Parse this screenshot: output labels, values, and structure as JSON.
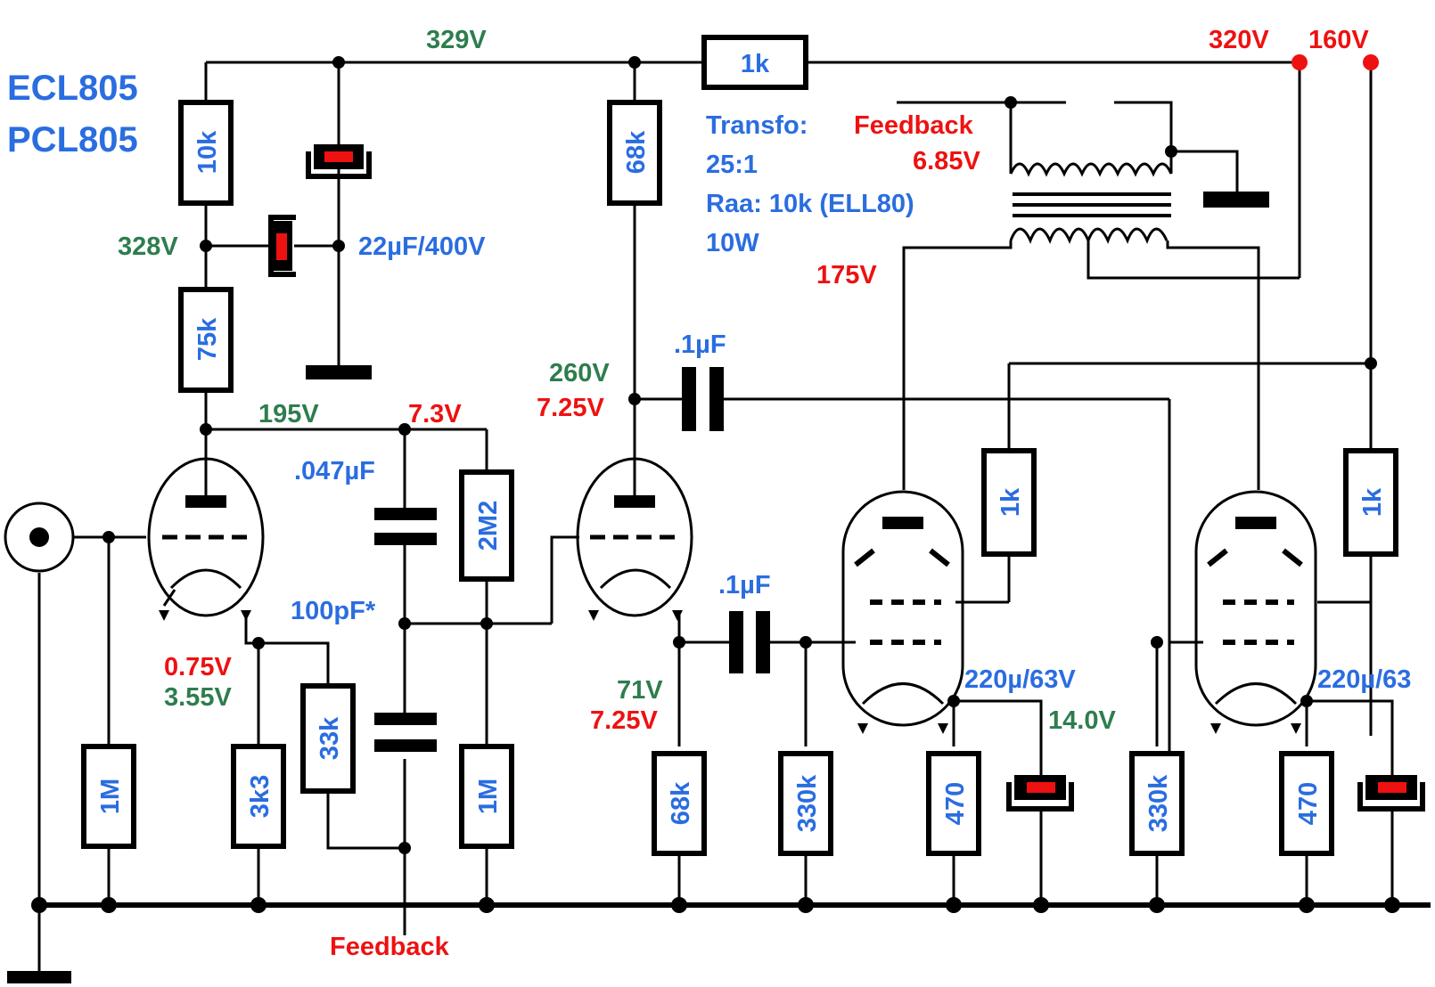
{
  "title_lines": [
    "ECL805",
    "PCL805"
  ],
  "colors": {
    "blue": "#2a6de0",
    "green": "#2e7d4e",
    "red": "#ee1111"
  },
  "voltages": {
    "v329": "329V",
    "v328": "328V",
    "v320": "320V",
    "v160": "160V",
    "v195": "195V",
    "v7_3": "7.3V",
    "v260": "260V",
    "v7_25a": "7.25V",
    "v175": "175V",
    "v6_85": "6.85V",
    "v0_75": "0.75V",
    "v3_55": "3.55V",
    "v71": "71V",
    "v7_25b": "7.25V",
    "v14": "14.0V"
  },
  "components": {
    "r_1k_top": "1k",
    "r_10k": "10k",
    "r_75k": "75k",
    "r_68k_top": "68k",
    "r_2m2": "2M2",
    "r_1m_left": "1M",
    "r_3k3": "3k3",
    "r_33k": "33k",
    "r_1m_mid": "1M",
    "r_68k_bot": "68k",
    "r_330k_a": "330k",
    "r_470_a": "470",
    "r_330k_b": "330k",
    "r_470_b": "470",
    "r_1k_a": "1k",
    "r_1k_b": "1k",
    "c_22u": "22µF/400V",
    "c_047": ".047µF",
    "c_100p": "100pF*",
    "c_1u_top": ".1µF",
    "c_1u_bot": ".1µF",
    "c_220_a": "220µ/63V",
    "c_220_b": "220µ/63"
  },
  "transformer": {
    "line1": "Transfo:",
    "line2": "25:1",
    "line3": "Raa: 10k (ELL80)",
    "line4": "10W",
    "feedback_label": "Feedback"
  },
  "feedback_bottom": "Feedback"
}
